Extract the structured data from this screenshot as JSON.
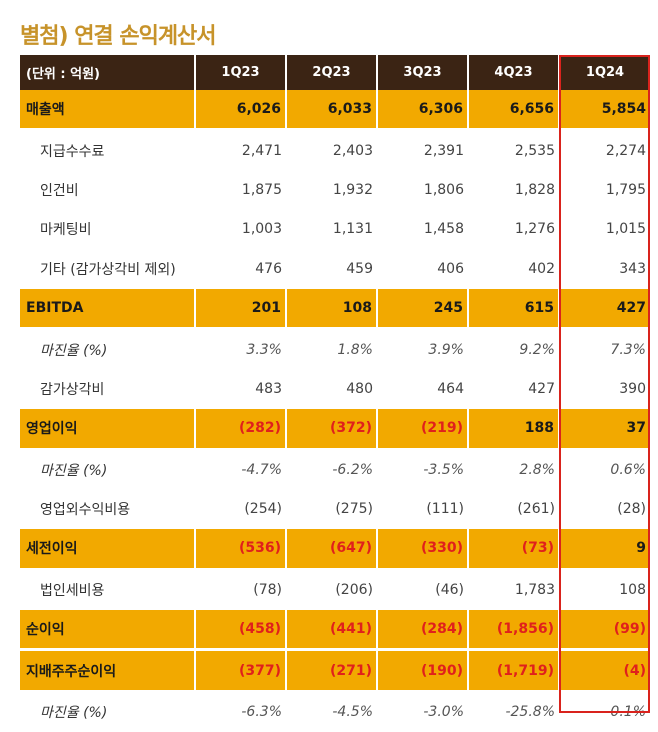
{
  "title": "별첨) 연결 손익계산서",
  "header": [
    "(단위 : 억원)",
    "1Q23",
    "2Q23",
    "3Q23",
    "4Q23",
    "1Q24"
  ],
  "rows": [
    {
      "label": "매출액",
      "kind": "hl",
      "v": [
        "6,026",
        "6,033",
        "6,306",
        "6,656",
        "5,854"
      ]
    },
    {
      "label": "지급수수료",
      "kind": "plain",
      "v": [
        "2,471",
        "2,403",
        "2,391",
        "2,535",
        "2,274"
      ]
    },
    {
      "label": "인건비",
      "kind": "plain",
      "v": [
        "1,875",
        "1,932",
        "1,806",
        "1,828",
        "1,795"
      ]
    },
    {
      "label": "마케팅비",
      "kind": "plain",
      "v": [
        "1,003",
        "1,131",
        "1,458",
        "1,276",
        "1,015"
      ]
    },
    {
      "label": "기타 (감가상각비 제외)",
      "kind": "plain",
      "v": [
        "476",
        "459",
        "406",
        "402",
        "343"
      ]
    },
    {
      "label": "EBITDA",
      "kind": "hl",
      "v": [
        "201",
        "108",
        "245",
        "615",
        "427"
      ]
    },
    {
      "label": "마진율 (%)",
      "kind": "margin",
      "v": [
        "3.3%",
        "1.8%",
        "3.9%",
        "9.2%",
        "7.3%"
      ]
    },
    {
      "label": "감가상각비",
      "kind": "plain",
      "v": [
        "483",
        "480",
        "464",
        "427",
        "390"
      ]
    },
    {
      "label": "영업이익",
      "kind": "hl",
      "v": [
        "(282)",
        "(372)",
        "(219)",
        "188",
        "37"
      ]
    },
    {
      "label": "마진율 (%)",
      "kind": "margin",
      "v": [
        "-4.7%",
        "-6.2%",
        "-3.5%",
        "2.8%",
        "0.6%"
      ]
    },
    {
      "label": "영업외수익비용",
      "kind": "plain",
      "v": [
        "(254)",
        "(275)",
        "(111)",
        "(261)",
        "(28)"
      ]
    },
    {
      "label": "세전이익",
      "kind": "hl",
      "v": [
        "(536)",
        "(647)",
        "(330)",
        "(73)",
        "9"
      ]
    },
    {
      "label": "법인세비용",
      "kind": "plain",
      "v": [
        "(78)",
        "(206)",
        "(46)",
        "1,783",
        "108"
      ]
    },
    {
      "label": "순이익",
      "kind": "hl",
      "v": [
        "(458)",
        "(441)",
        "(284)",
        "(1,856)",
        "(99)"
      ]
    },
    {
      "label": "지배주주순이익",
      "kind": "hl",
      "v": [
        "(377)",
        "(271)",
        "(190)",
        "(1,719)",
        "(4)"
      ]
    },
    {
      "label": "마진율 (%)",
      "kind": "margin",
      "v": [
        "-6.3%",
        "-4.5%",
        "-3.0%",
        "-25.8%",
        "-0.1%"
      ]
    }
  ],
  "colors": {
    "header_bg": "#3b2414",
    "highlight_bg": "#f2a900",
    "negative": "#e0201c",
    "title": "#c7932a",
    "focus_box": "#d9231d"
  }
}
